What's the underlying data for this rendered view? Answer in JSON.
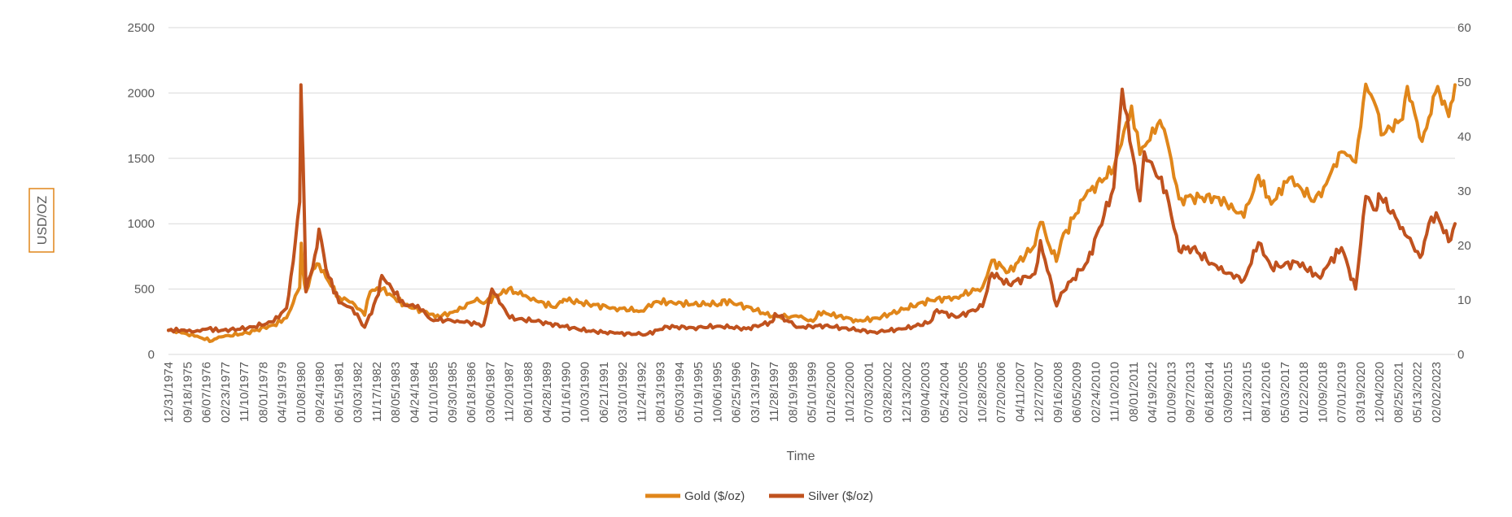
{
  "chart_data": {
    "type": "line",
    "xlabel": "Time",
    "ylabel": "USD/OZ",
    "ylim_left": [
      0,
      2500
    ],
    "ylim_right": [
      0,
      60
    ],
    "yticks_left": [
      "0",
      "500",
      "1000",
      "1500",
      "2000",
      "2500"
    ],
    "yticks_right": [
      "0",
      "10",
      "20",
      "30",
      "40",
      "50",
      "60"
    ],
    "x_range": [
      "12/31/1974",
      "12/31/2023"
    ],
    "xtick_labels": [
      "12/31/1974",
      "09/18/1975",
      "06/07/1976",
      "02/23/1977",
      "11/10/1977",
      "08/01/1978",
      "04/19/1979",
      "01/08/1980",
      "09/24/1980",
      "06/15/1981",
      "03/03/1982",
      "11/17/1982",
      "08/05/1983",
      "04/24/1984",
      "01/10/1985",
      "09/30/1985",
      "06/18/1986",
      "03/06/1987",
      "11/20/1987",
      "08/10/1988",
      "04/28/1989",
      "01/16/1990",
      "10/03/1990",
      "06/21/1991",
      "03/10/1992",
      "11/24/1992",
      "08/13/1993",
      "05/03/1994",
      "01/19/1995",
      "10/06/1995",
      "06/25/1996",
      "03/13/1997",
      "11/28/1997",
      "08/19/1998",
      "05/10/1999",
      "01/26/2000",
      "10/12/2000",
      "07/03/2001",
      "03/28/2002",
      "12/13/2002",
      "09/04/2003",
      "05/24/2004",
      "02/10/2005",
      "10/28/2005",
      "07/20/2006",
      "04/11/2007",
      "12/27/2007",
      "09/16/2008",
      "06/05/2009",
      "02/24/2010",
      "11/10/2010",
      "08/01/2011",
      "04/19/2012",
      "01/09/2013",
      "09/27/2013",
      "06/18/2014",
      "03/09/2015",
      "11/23/2015",
      "08/12/2016",
      "05/03/2017",
      "01/22/2018",
      "10/09/2018",
      "07/01/2019",
      "03/19/2020",
      "12/04/2020",
      "08/25/2021",
      "05/13/2022",
      "02/02/2023"
    ],
    "grid": true,
    "legend_position": "bottom",
    "series": [
      {
        "name": "Gold ($/oz)",
        "axis": "left",
        "color": "#E0861A",
        "points": [
          [
            "1974-12-31",
            186
          ],
          [
            "1975-06-30",
            165
          ],
          [
            "1975-12-31",
            140
          ],
          [
            "1976-08-31",
            104
          ],
          [
            "1976-12-31",
            134
          ],
          [
            "1977-12-31",
            165
          ],
          [
            "1978-12-31",
            226
          ],
          [
            "1979-06-30",
            280
          ],
          [
            "1979-10-01",
            395
          ],
          [
            "1979-12-31",
            512
          ],
          [
            "1980-01-21",
            850
          ],
          [
            "1980-02-15",
            640
          ],
          [
            "1980-03-27",
            480
          ],
          [
            "1980-06-30",
            650
          ],
          [
            "1980-09-24",
            690
          ],
          [
            "1980-12-31",
            590
          ],
          [
            "1981-06-30",
            440
          ],
          [
            "1981-12-31",
            400
          ],
          [
            "1982-06-21",
            300
          ],
          [
            "1982-09-07",
            480
          ],
          [
            "1983-02-15",
            500
          ],
          [
            "1983-12-31",
            380
          ],
          [
            "1984-12-31",
            308
          ],
          [
            "1985-02-25",
            285
          ],
          [
            "1985-12-31",
            330
          ],
          [
            "1986-10-01",
            430
          ],
          [
            "1986-12-31",
            390
          ],
          [
            "1987-12-14",
            500
          ],
          [
            "1988-06-30",
            450
          ],
          [
            "1988-12-31",
            410
          ],
          [
            "1989-09-30",
            360
          ],
          [
            "1989-12-31",
            400
          ],
          [
            "1990-02-01",
            420
          ],
          [
            "1990-12-31",
            385
          ],
          [
            "1991-12-31",
            355
          ],
          [
            "1992-12-31",
            333
          ],
          [
            "1993-07-30",
            405
          ],
          [
            "1994-12-31",
            383
          ],
          [
            "1995-12-31",
            387
          ],
          [
            "1996-02-02",
            415
          ],
          [
            "1996-12-31",
            367
          ],
          [
            "1997-12-31",
            290
          ],
          [
            "1998-12-31",
            288
          ],
          [
            "1999-07-20",
            253
          ],
          [
            "1999-10-05",
            325
          ],
          [
            "2000-12-31",
            272
          ],
          [
            "2001-04-02",
            256
          ],
          [
            "2001-12-31",
            278
          ],
          [
            "2002-12-31",
            345
          ],
          [
            "2003-12-31",
            415
          ],
          [
            "2004-12-31",
            438
          ],
          [
            "2005-12-31",
            513
          ],
          [
            "2006-05-12",
            720
          ],
          [
            "2006-12-31",
            632
          ],
          [
            "2007-12-31",
            835
          ],
          [
            "2008-03-17",
            1010
          ],
          [
            "2008-10-24",
            712
          ],
          [
            "2008-12-31",
            870
          ],
          [
            "2009-12-02",
            1215
          ],
          [
            "2010-12-31",
            1420
          ],
          [
            "2011-09-05",
            1900
          ],
          [
            "2011-12-31",
            1530
          ],
          [
            "2012-10-05",
            1790
          ],
          [
            "2012-12-31",
            1660
          ],
          [
            "2013-06-27",
            1190
          ],
          [
            "2013-12-31",
            1200
          ],
          [
            "2014-12-31",
            1200
          ],
          [
            "2015-12-17",
            1050
          ],
          [
            "2016-07-06",
            1370
          ],
          [
            "2016-12-31",
            1150
          ],
          [
            "2017-09-08",
            1350
          ],
          [
            "2017-12-31",
            1300
          ],
          [
            "2018-08-16",
            1170
          ],
          [
            "2018-12-31",
            1280
          ],
          [
            "2019-09-04",
            1550
          ],
          [
            "2019-12-31",
            1520
          ],
          [
            "2020-03-19",
            1470
          ],
          [
            "2020-08-06",
            2067
          ],
          [
            "2020-12-31",
            1890
          ],
          [
            "2021-03-08",
            1680
          ],
          [
            "2021-12-31",
            1800
          ],
          [
            "2022-03-08",
            2050
          ],
          [
            "2022-09-28",
            1630
          ],
          [
            "2022-12-31",
            1810
          ],
          [
            "2023-05-04",
            2050
          ],
          [
            "2023-10-05",
            1820
          ],
          [
            "2023-12-31",
            2062
          ]
        ]
      },
      {
        "name": "Silver ($/oz)",
        "axis": "right",
        "color": "#C0521E",
        "points": [
          [
            "1974-12-31",
            4.4
          ],
          [
            "1975-06-30",
            4.5
          ],
          [
            "1975-12-31",
            4.2
          ],
          [
            "1976-06-30",
            4.7
          ],
          [
            "1976-12-31",
            4.4
          ],
          [
            "1977-12-31",
            4.8
          ],
          [
            "1978-12-31",
            6.0
          ],
          [
            "1979-06-30",
            8.5
          ],
          [
            "1979-10-01",
            17.0
          ],
          [
            "1979-12-31",
            28.0
          ],
          [
            "1980-01-17",
            49.5
          ],
          [
            "1980-02-15",
            36.0
          ],
          [
            "1980-03-27",
            11.5
          ],
          [
            "1980-06-30",
            16.0
          ],
          [
            "1980-09-24",
            23.0
          ],
          [
            "1980-12-31",
            15.7
          ],
          [
            "1981-06-30",
            9.5
          ],
          [
            "1981-12-31",
            8.5
          ],
          [
            "1982-06-21",
            5.0
          ],
          [
            "1982-12-31",
            11.0
          ],
          [
            "1983-02-15",
            14.5
          ],
          [
            "1983-12-31",
            9.0
          ],
          [
            "1984-06-30",
            9.0
          ],
          [
            "1984-12-31",
            6.4
          ],
          [
            "1985-12-31",
            6.2
          ],
          [
            "1986-12-31",
            5.4
          ],
          [
            "1987-04-27",
            12.0
          ],
          [
            "1987-12-31",
            6.7
          ],
          [
            "1988-12-31",
            6.1
          ],
          [
            "1989-12-31",
            5.2
          ],
          [
            "1990-12-31",
            4.3
          ],
          [
            "1991-12-31",
            3.9
          ],
          [
            "1992-12-31",
            3.7
          ],
          [
            "1993-02-26",
            3.6
          ],
          [
            "1993-12-31",
            5.1
          ],
          [
            "1994-12-31",
            4.9
          ],
          [
            "1995-12-31",
            5.2
          ],
          [
            "1996-12-31",
            4.7
          ],
          [
            "1997-12-31",
            6.0
          ],
          [
            "1998-02-05",
            7.5
          ],
          [
            "1998-12-31",
            5.0
          ],
          [
            "1999-12-31",
            5.3
          ],
          [
            "2000-12-31",
            4.6
          ],
          [
            "2001-11-22",
            4.1
          ],
          [
            "2002-12-31",
            4.7
          ],
          [
            "2003-12-31",
            5.9
          ],
          [
            "2004-04-06",
            8.2
          ],
          [
            "2004-12-31",
            6.8
          ],
          [
            "2005-12-31",
            8.8
          ],
          [
            "2006-05-12",
            14.9
          ],
          [
            "2006-12-31",
            12.9
          ],
          [
            "2007-12-31",
            14.8
          ],
          [
            "2008-03-17",
            20.9
          ],
          [
            "2008-10-28",
            8.9
          ],
          [
            "2008-12-31",
            11.3
          ],
          [
            "2009-12-31",
            17.0
          ],
          [
            "2010-12-31",
            30.6
          ],
          [
            "2011-04-28",
            48.7
          ],
          [
            "2011-12-31",
            28.2
          ],
          [
            "2012-02-29",
            37.2
          ],
          [
            "2012-12-31",
            30.0
          ],
          [
            "2013-06-27",
            19.0
          ],
          [
            "2013-12-31",
            19.5
          ],
          [
            "2014-12-31",
            15.6
          ],
          [
            "2015-12-17",
            13.7
          ],
          [
            "2016-07-06",
            20.5
          ],
          [
            "2016-12-31",
            16.0
          ],
          [
            "2017-12-31",
            16.9
          ],
          [
            "2018-11-14",
            14.0
          ],
          [
            "2018-12-31",
            15.5
          ],
          [
            "2019-09-04",
            19.6
          ],
          [
            "2020-03-18",
            12.0
          ],
          [
            "2020-08-07",
            29.0
          ],
          [
            "2020-12-31",
            26.5
          ],
          [
            "2021-02-01",
            29.5
          ],
          [
            "2021-12-31",
            23.3
          ],
          [
            "2022-09-01",
            17.8
          ],
          [
            "2022-12-31",
            24.0
          ],
          [
            "2023-04-14",
            26.0
          ],
          [
            "2023-10-03",
            20.7
          ],
          [
            "2023-12-31",
            24.0
          ]
        ]
      }
    ]
  }
}
